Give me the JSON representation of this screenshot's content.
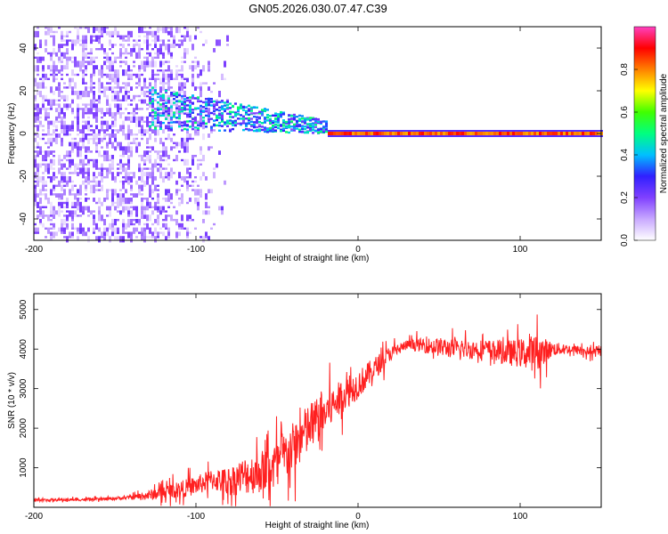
{
  "figure_title": "GN05.2026.030.07.47.C39",
  "chart_data": [
    {
      "type": "heatmap",
      "title": "GN05.2026.030.07.47.C39",
      "xlabel": "Height of straight line (km)",
      "ylabel": "Frequency (Hz)",
      "xlim": [
        -200,
        150
      ],
      "ylim": [
        -50,
        50
      ],
      "x_ticks": [
        -200,
        -100,
        0,
        100
      ],
      "y_ticks": [
        -40,
        -20,
        0,
        20,
        40
      ],
      "colorbar": {
        "label": "Normalized spectral amplitude",
        "range": [
          0,
          1
        ],
        "ticks": [
          0.0,
          0.2,
          0.4,
          0.6,
          0.8
        ],
        "tick_labels": [
          "0.0",
          "0.2",
          "0.4",
          "0.6",
          "0.8"
        ],
        "colormap": [
          "#ffffff",
          "#c8a8ff",
          "#8040ff",
          "#3020ff",
          "#00c0ff",
          "#00ff80",
          "#40ff00",
          "#ffff00",
          "#ff8000",
          "#ff0000",
          "#ff40c0"
        ]
      },
      "features": [
        {
          "name": "scattered noise",
          "x_range": [
            -200,
            -80
          ],
          "freq_range": [
            -50,
            50
          ],
          "amplitude": 0.15
        },
        {
          "name": "signal band",
          "x_range": [
            -130,
            -20
          ],
          "center_freq_hz": [
            12,
            3
          ],
          "spread_hz": [
            10,
            3
          ],
          "amplitude": 0.35
        },
        {
          "name": "carrier line",
          "x_range": [
            -20,
            150
          ],
          "center_freq_hz": 0,
          "amplitude": 0.9
        }
      ]
    },
    {
      "type": "line",
      "xlabel": "Height of straight line (km)",
      "ylabel": "SNR (10 * v/v)",
      "xlim": [
        -200,
        150
      ],
      "ylim": [
        0,
        5400
      ],
      "x_ticks": [
        -200,
        -100,
        0,
        100
      ],
      "y_ticks": [
        1000,
        2000,
        3000,
        4000,
        5000
      ],
      "series": [
        {
          "name": "SNR",
          "color": "#ff2020",
          "x": [
            -200,
            -180,
            -160,
            -140,
            -130,
            -120,
            -110,
            -100,
            -90,
            -80,
            -70,
            -60,
            -50,
            -40,
            -30,
            -20,
            -10,
            0,
            10,
            20,
            30,
            40,
            50,
            60,
            70,
            80,
            90,
            100,
            110,
            120,
            130,
            150
          ],
          "mean": [
            180,
            190,
            200,
            250,
            300,
            380,
            450,
            550,
            700,
            650,
            800,
            900,
            1100,
            1500,
            2000,
            2400,
            2800,
            3100,
            3500,
            3900,
            4100,
            4100,
            4050,
            4000,
            4000,
            4000,
            3900,
            3900,
            3900,
            4000,
            4000,
            3900
          ],
          "spread": [
            60,
            60,
            60,
            80,
            200,
            300,
            350,
            400,
            450,
            600,
            800,
            900,
            1000,
            1100,
            1100,
            900,
            700,
            600,
            500,
            300,
            200,
            300,
            400,
            400,
            400,
            400,
            500,
            600,
            800,
            300,
            200,
            200
          ]
        }
      ]
    }
  ]
}
